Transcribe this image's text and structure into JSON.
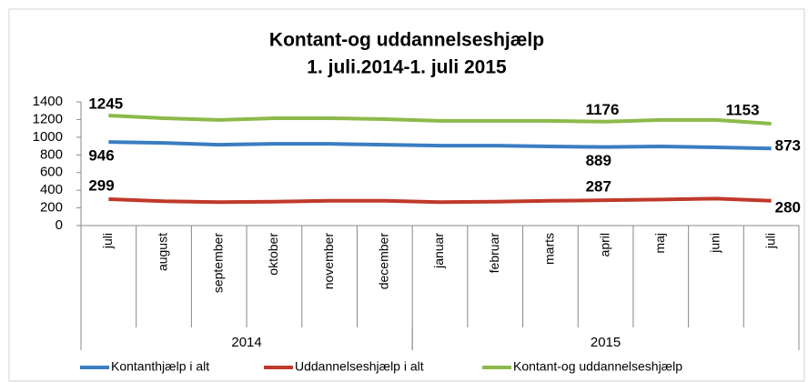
{
  "chart_data": {
    "type": "line",
    "title": "Kontant-og uddannelseshjælp",
    "subtitle": "1. juli.2014-1. juli 2015",
    "categories": [
      "juli",
      "august",
      "september",
      "oktober",
      "november",
      "december",
      "januar",
      "februar",
      "marts",
      "april",
      "maj",
      "juni",
      "juli"
    ],
    "x_groups": [
      {
        "label": "2014",
        "start": 0,
        "end": 5
      },
      {
        "label": "2015",
        "start": 6,
        "end": 12
      }
    ],
    "series": [
      {
        "name": "Kontanthjælp i alt",
        "color": "#3a7dc2",
        "values": [
          946,
          935,
          915,
          925,
          925,
          915,
          905,
          905,
          895,
          889,
          895,
          885,
          873
        ]
      },
      {
        "name": "Uddannelseshjælp i alt",
        "color": "#c0392b",
        "values": [
          299,
          275,
          265,
          270,
          280,
          280,
          265,
          270,
          280,
          287,
          295,
          305,
          280
        ]
      },
      {
        "name": "Kontant-og uddannelseshjælp",
        "color": "#8cba4a",
        "values": [
          1245,
          1215,
          1195,
          1215,
          1215,
          1205,
          1185,
          1185,
          1185,
          1176,
          1195,
          1195,
          1153
        ]
      }
    ],
    "data_label_colors": [
      "#2e75b6",
      "#c00000",
      "#00b050"
    ],
    "data_label_indices": [
      0,
      9,
      12
    ],
    "ylim": [
      0,
      1400
    ],
    "yticks": [
      0,
      200,
      400,
      600,
      800,
      1000,
      1200,
      1400
    ],
    "legend": "bottom"
  }
}
